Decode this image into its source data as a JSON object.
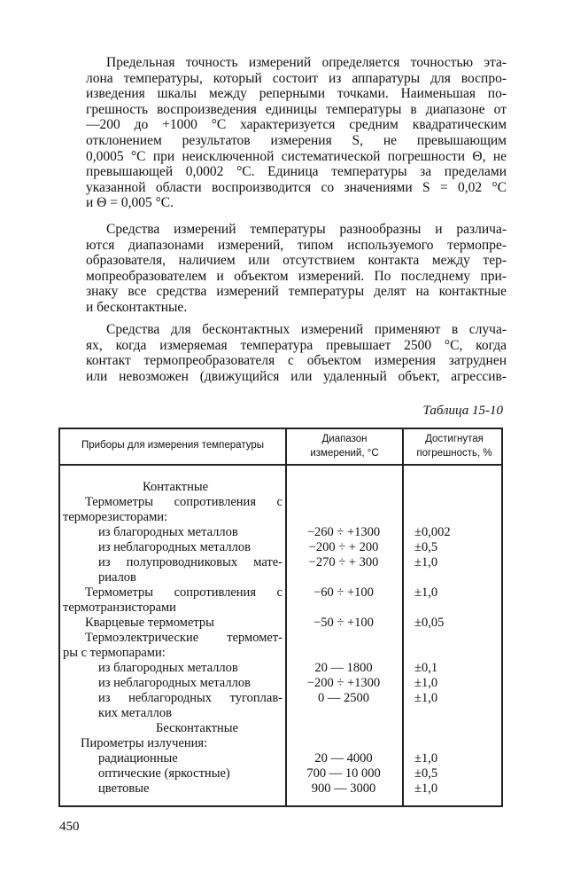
{
  "paragraphs": [
    [
      "Предельная точность измерений определяется точностью эта-",
      "лона температуры, который состоит из аппаратуры для воспро-",
      "изведения шкалы между реперными точками. Наименьшая по-",
      "грешность воспроизведения единицы температуры в диапазоне от",
      "—200 до +1000 °С характеризуется средним квадратическим",
      "отклонением результатов измерения S, не превышающим",
      "0,0005 °С при неисключенной систематической погрешности Θ, не",
      "превышающей 0,0002 °С. Единица температуры за пределами",
      "указанной области воспроизводится со значениями S = 0,02 °С",
      "и Θ = 0,005 °С."
    ],
    [
      "Средства измерений температуры разнообразны и различа-",
      "ются диапазонами измерений, типом используемого термопре-",
      "образователя, наличием или отсутствием контакта между тер-",
      "мопреобразователем и объектом измерений. По последнему при-",
      "знаку все средства измерений температуры делят на контактные",
      "и бесконтактные."
    ],
    [
      "Средства для бесконтактных измерений применяют в случа-",
      "ях, когда измеряемая температура превышает 2500 °С, когда",
      "контакт термопреобразователя с объектом измерения затруднен",
      "или невозможен (движущийся или удаленный объект, агрессив-"
    ]
  ],
  "table": {
    "caption": "Таблица 15-10",
    "headers": [
      "Приборы для измерения температуры",
      "Диапазон измерений, °С",
      "Достигнутая погрешность, %"
    ],
    "rows": [
      {
        "name": "Контактные",
        "range": "",
        "error": ""
      },
      {
        "name": "Термометры сопротивления с",
        "range": "",
        "error": ""
      },
      {
        "name": "терморезисторами:",
        "range": "",
        "error": ""
      },
      {
        "name": "из благородных металлов",
        "range": "−260 ÷ +1300",
        "error": "±0,002"
      },
      {
        "name": "из неблагородных металлов",
        "range": "−200 ÷ + 200",
        "error": "±0,5"
      },
      {
        "name": "из полупроводниковых мате-",
        "range": "−270 ÷ + 300",
        "error": "±1,0"
      },
      {
        "name": "риалов",
        "range": "",
        "error": ""
      },
      {
        "name": "Термометры сопротивления с",
        "range": "−60 ÷ +100",
        "error": "±1,0"
      },
      {
        "name": "термотранзисторами",
        "range": "",
        "error": ""
      },
      {
        "name": "Кварцевые термометры",
        "range": "−50 ÷ +100",
        "error": "±0,05"
      },
      {
        "name": "Термоэлектрические термомет-",
        "range": "",
        "error": ""
      },
      {
        "name": "ры с термопарами:",
        "range": "",
        "error": ""
      },
      {
        "name": "из благородных металлов",
        "range": "20 — 1800",
        "error": "±0,1"
      },
      {
        "name": "из неблагородных металлов",
        "range": "−200 ÷ +1300",
        "error": "±1,0"
      },
      {
        "name": "из неблагородных тугоплав-",
        "range": "0 — 2500",
        "error": "±1,0"
      },
      {
        "name": "ких металлов",
        "range": "",
        "error": ""
      },
      {
        "name": "Бесконтактные",
        "range": "",
        "error": ""
      },
      {
        "name": "Пирометры излучения:",
        "range": "",
        "error": ""
      },
      {
        "name": "радиационные",
        "range": "20 — 4000",
        "error": "±1,0"
      },
      {
        "name": "оптические (яркостные)",
        "range": "700 — 10 000",
        "error": "±0,5"
      },
      {
        "name": "цветовые",
        "range": "900 — 3000",
        "error": "±1,0"
      }
    ]
  },
  "page_number": "450"
}
